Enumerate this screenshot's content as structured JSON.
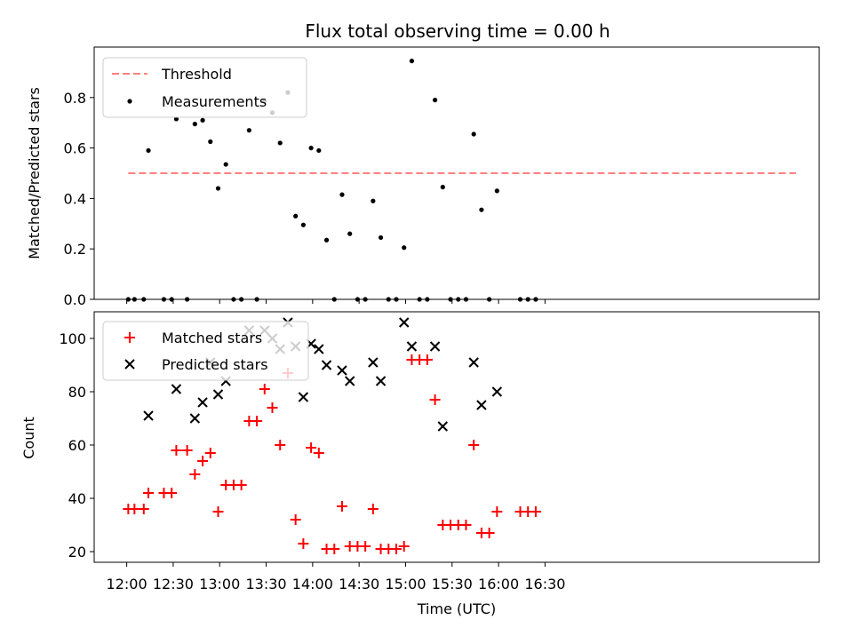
{
  "chart_data": [
    {
      "type": "scatter",
      "title": "Flux total observing time = 0.00 h",
      "xlabel": "",
      "ylabel": "Matched/Predicted stars",
      "ylim": [
        0,
        1.0
      ],
      "yticks": [
        "0.0",
        "0.2",
        "0.4",
        "0.6",
        "0.8"
      ],
      "xlim_minutes": [
        -21,
        447
      ],
      "legend": {
        "position": "top-left",
        "entries": [
          "Threshold",
          "Measurements"
        ]
      },
      "threshold": {
        "name": "Threshold",
        "value": 0.5,
        "x_start_minutes": 1,
        "x_end_minutes": 432,
        "color": "#ff8080"
      },
      "series": [
        {
          "name": "Measurements",
          "color": "#000000",
          "points": [
            [
              1,
              0
            ],
            [
              5,
              0
            ],
            [
              11,
              0
            ],
            [
              14,
              0.59
            ],
            [
              24,
              0
            ],
            [
              29,
              0
            ],
            [
              32,
              0.715
            ],
            [
              39,
              0
            ],
            [
              44,
              0.695
            ],
            [
              49,
              0.71
            ],
            [
              54,
              0.625
            ],
            [
              59,
              0.44
            ],
            [
              64,
              0.535
            ],
            [
              69,
              0
            ],
            [
              74,
              0
            ],
            [
              79,
              0.67
            ],
            [
              84,
              0
            ],
            [
              89,
              0.785
            ],
            [
              94,
              0.74
            ],
            [
              99,
              0.62
            ],
            [
              104,
              0.82
            ],
            [
              109,
              0.33
            ],
            [
              114,
              0.295
            ],
            [
              119,
              0.6
            ],
            [
              124,
              0.59
            ],
            [
              129,
              0.235
            ],
            [
              134,
              0
            ],
            [
              139,
              0.415
            ],
            [
              144,
              0.26
            ],
            [
              149,
              0
            ],
            [
              154,
              0
            ],
            [
              159,
              0.39
            ],
            [
              164,
              0.245
            ],
            [
              169,
              0
            ],
            [
              174,
              0
            ],
            [
              179,
              0.205
            ],
            [
              184,
              0.945
            ],
            [
              189,
              0
            ],
            [
              194,
              0
            ],
            [
              199,
              0.79
            ],
            [
              204,
              0.445
            ],
            [
              209,
              0
            ],
            [
              214,
              0
            ],
            [
              219,
              0
            ],
            [
              224,
              0.655
            ],
            [
              229,
              0.355
            ],
            [
              234,
              0
            ],
            [
              239,
              0.43
            ],
            [
              254,
              0
            ],
            [
              259,
              0
            ],
            [
              264,
              0
            ]
          ]
        }
      ]
    },
    {
      "type": "scatter",
      "title": "",
      "xlabel": "Time (UTC)",
      "ylabel": "Count",
      "ylim": [
        16,
        110
      ],
      "yticks": [
        "20",
        "40",
        "60",
        "80",
        "100"
      ],
      "xlim_minutes": [
        -21,
        447
      ],
      "xtick_minutes": [
        0,
        30,
        60,
        90,
        120,
        150,
        180,
        210,
        240,
        270
      ],
      "xtick_labels": [
        "12:00",
        "12:30",
        "13:00",
        "13:30",
        "14:00",
        "14:30",
        "15:00",
        "15:30",
        "16:00",
        "16:30"
      ],
      "legend": {
        "position": "top-left",
        "entries": [
          "Matched stars",
          "Predicted stars"
        ]
      },
      "series": [
        {
          "name": "Matched stars",
          "marker": "+",
          "color": "#ff0000",
          "points": [
            [
              1,
              36
            ],
            [
              5,
              36
            ],
            [
              11,
              36
            ],
            [
              14,
              42
            ],
            [
              24,
              42
            ],
            [
              29,
              42
            ],
            [
              32,
              58
            ],
            [
              39,
              58
            ],
            [
              44,
              49
            ],
            [
              49,
              54
            ],
            [
              54,
              57
            ],
            [
              59,
              35
            ],
            [
              64,
              45
            ],
            [
              69,
              45
            ],
            [
              74,
              45
            ],
            [
              79,
              69
            ],
            [
              84,
              69
            ],
            [
              89,
              81
            ],
            [
              94,
              74
            ],
            [
              99,
              60
            ],
            [
              104,
              87
            ],
            [
              109,
              32
            ],
            [
              114,
              23
            ],
            [
              119,
              59
            ],
            [
              124,
              57
            ],
            [
              129,
              21
            ],
            [
              134,
              21
            ],
            [
              139,
              37
            ],
            [
              144,
              22
            ],
            [
              149,
              22
            ],
            [
              154,
              22
            ],
            [
              159,
              36
            ],
            [
              164,
              21
            ],
            [
              169,
              21
            ],
            [
              174,
              21
            ],
            [
              179,
              22
            ],
            [
              184,
              92
            ],
            [
              189,
              92
            ],
            [
              194,
              92
            ],
            [
              199,
              77
            ],
            [
              204,
              30
            ],
            [
              209,
              30
            ],
            [
              214,
              30
            ],
            [
              219,
              30
            ],
            [
              224,
              60
            ],
            [
              229,
              27
            ],
            [
              234,
              27
            ],
            [
              239,
              35
            ],
            [
              254,
              35
            ],
            [
              259,
              35
            ],
            [
              264,
              35
            ]
          ]
        },
        {
          "name": "Predicted stars",
          "marker": "x",
          "color": "#000000",
          "points": [
            [
              14,
              71
            ],
            [
              32,
              81
            ],
            [
              44,
              70
            ],
            [
              49,
              76
            ],
            [
              54,
              91
            ],
            [
              59,
              79
            ],
            [
              64,
              84
            ],
            [
              79,
              103
            ],
            [
              89,
              103
            ],
            [
              94,
              100
            ],
            [
              99,
              96
            ],
            [
              104,
              106
            ],
            [
              109,
              97
            ],
            [
              114,
              78
            ],
            [
              119,
              98
            ],
            [
              124,
              96
            ],
            [
              129,
              90
            ],
            [
              139,
              88
            ],
            [
              144,
              84
            ],
            [
              159,
              91
            ],
            [
              164,
              84
            ],
            [
              179,
              106
            ],
            [
              184,
              97
            ],
            [
              199,
              97
            ],
            [
              204,
              67
            ],
            [
              224,
              91
            ],
            [
              229,
              75
            ],
            [
              239,
              80
            ]
          ]
        }
      ]
    }
  ]
}
